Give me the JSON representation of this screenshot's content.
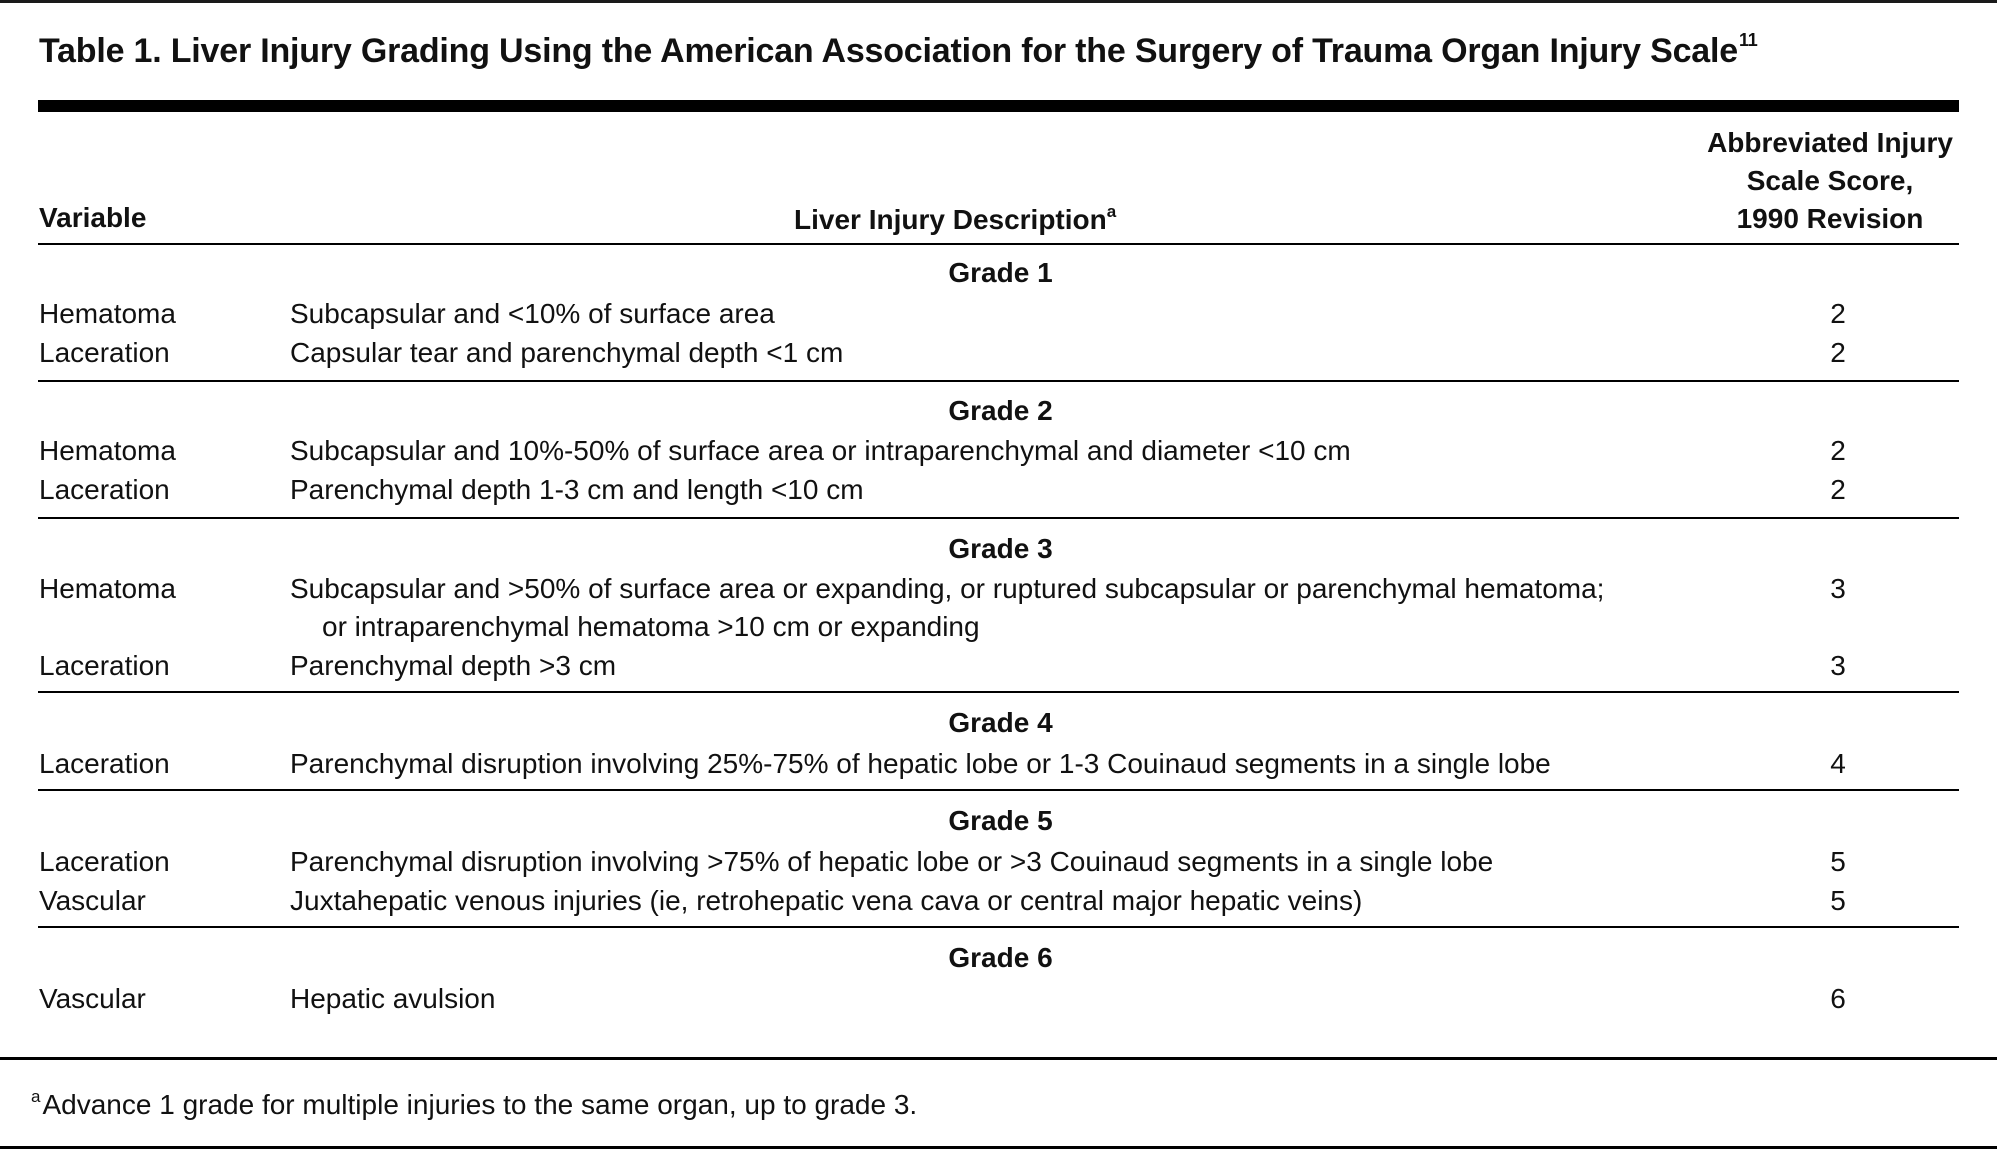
{
  "table": {
    "title": "Table 1. Liver Injury Grading Using the American Association for the Surgery of Trauma Organ Injury Scale",
    "title_ref": "11",
    "headers": {
      "variable": "Variable",
      "description": "Liver Injury Description",
      "description_note": "a",
      "score_line1": "Abbreviated Injury",
      "score_line2": "Scale Score,",
      "score_line3": "1990 Revision"
    },
    "grades": [
      {
        "label": "Grade 1",
        "rows": [
          {
            "variable": "Hematoma",
            "description": "Subcapsular and <10% of surface area",
            "score": "2"
          },
          {
            "variable": "Laceration",
            "description": "Capsular tear and parenchymal depth <1 cm",
            "score": "2"
          }
        ]
      },
      {
        "label": "Grade 2",
        "rows": [
          {
            "variable": "Hematoma",
            "description": "Subcapsular and 10%-50% of surface area or intraparenchymal and diameter <10 cm",
            "score": "2"
          },
          {
            "variable": "Laceration",
            "description": "Parenchymal depth 1-3 cm and length <10 cm",
            "score": "2"
          }
        ]
      },
      {
        "label": "Grade 3",
        "rows": [
          {
            "variable": "Hematoma",
            "description": "Subcapsular and >50% of surface area or expanding, or ruptured subcapsular or parenchymal hematoma;",
            "description_cont": "or intraparenchymal hematoma >10 cm or expanding",
            "score": "3"
          },
          {
            "variable": "Laceration",
            "description": "Parenchymal depth >3 cm",
            "score": "3"
          }
        ]
      },
      {
        "label": "Grade 4",
        "rows": [
          {
            "variable": "Laceration",
            "description": "Parenchymal disruption involving 25%-75% of hepatic lobe or 1-3 Couinaud segments in a single lobe",
            "score": "4"
          }
        ]
      },
      {
        "label": "Grade 5",
        "rows": [
          {
            "variable": "Laceration",
            "description": "Parenchymal disruption involving >75% of hepatic lobe or >3 Couinaud segments in a single lobe",
            "score": "5"
          },
          {
            "variable": "Vascular",
            "description": "Juxtahepatic venous injuries (ie, retrohepatic vena cava or central major hepatic veins)",
            "score": "5"
          }
        ]
      },
      {
        "label": "Grade 6",
        "rows": [
          {
            "variable": "Vascular",
            "description": "Hepatic avulsion",
            "score": "6"
          }
        ]
      }
    ],
    "footnote_mark": "a",
    "footnote": "Advance 1 grade for multiple injuries to the same organ, up to grade 3."
  }
}
